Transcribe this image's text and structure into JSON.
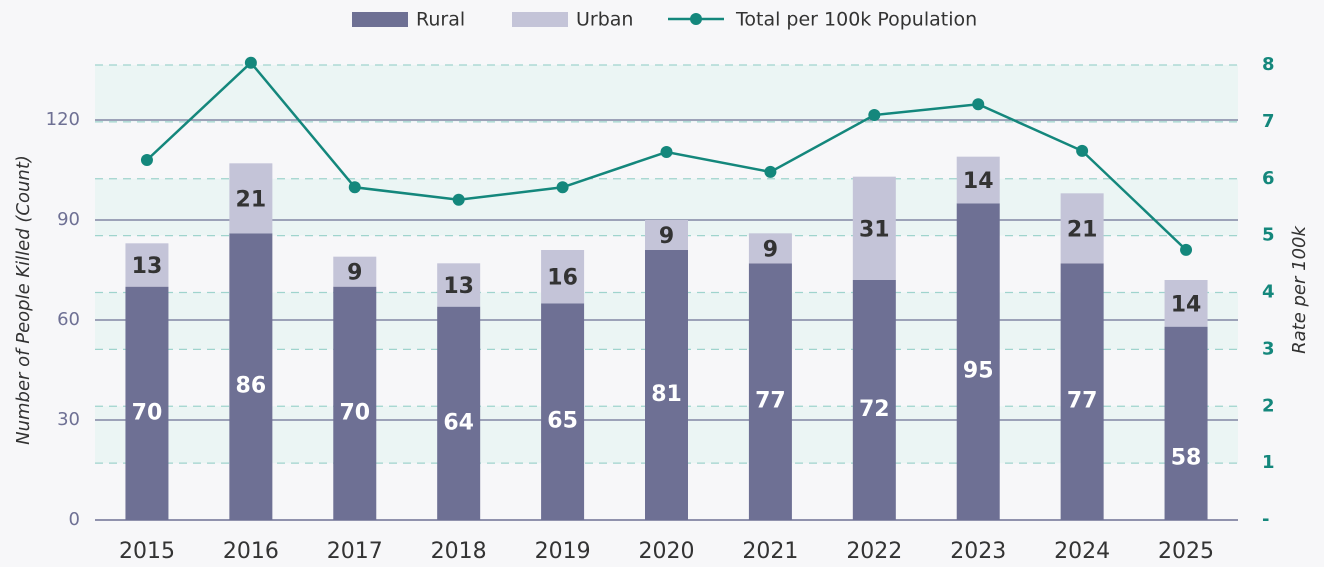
{
  "chart_data": {
    "type": "bar-line",
    "categories": [
      "2015",
      "2016",
      "2017",
      "2018",
      "2019",
      "2020",
      "2021",
      "2022",
      "2023",
      "2024",
      "2025"
    ],
    "series": [
      {
        "name": "Rural",
        "color": "#6e7094",
        "values": [
          70,
          86,
          70,
          64,
          65,
          81,
          77,
          72,
          95,
          77,
          58
        ]
      },
      {
        "name": "Urban",
        "color": "#c4c4d8",
        "values": [
          13,
          21,
          9,
          13,
          16,
          9,
          9,
          31,
          14,
          21,
          14
        ]
      },
      {
        "name": "Total per 100k Population",
        "color": "#14877c",
        "axis": "y2",
        "values": [
          6.33,
          8.04,
          5.85,
          5.63,
          5.85,
          6.47,
          6.12,
          7.12,
          7.31,
          6.49,
          4.75
        ]
      }
    ],
    "ylabel": "Number of People Killed (Count)",
    "y2label": "Rate per 100k",
    "ylim": [
      0,
      136.5
    ],
    "yticks": [
      0,
      30,
      60,
      90,
      120
    ],
    "y2lim": [
      0,
      8
    ],
    "y2ticks": [
      {
        "value": 0,
        "label": "-"
      },
      1,
      2,
      3,
      4,
      5,
      6,
      7,
      8
    ],
    "grid": true
  }
}
